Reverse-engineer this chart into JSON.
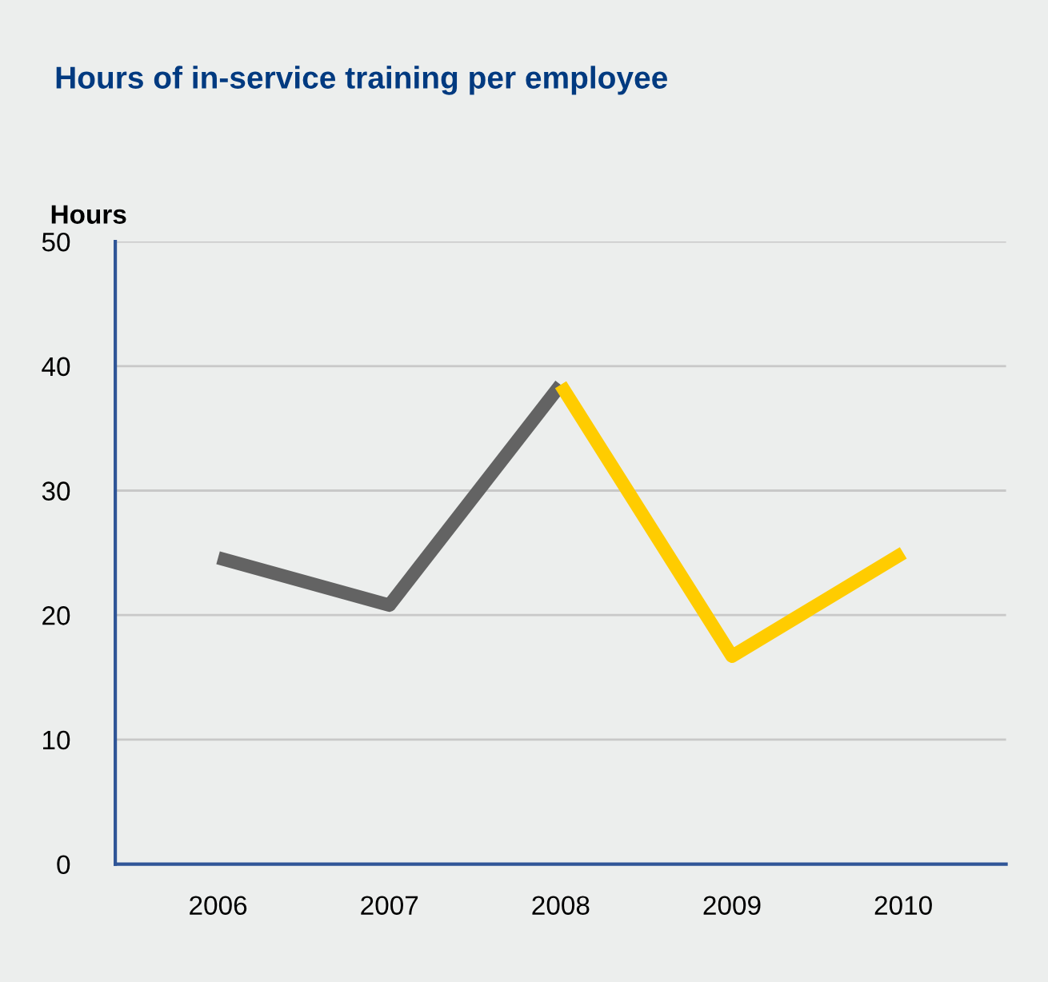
{
  "chart_data": {
    "type": "line",
    "title": "Hours of in-service training per employee",
    "ylabel": "Hours",
    "categories": [
      "2006",
      "2007",
      "2008",
      "2009",
      "2010"
    ],
    "series": [
      {
        "color": "#636363",
        "values": [
          24.6,
          20.8,
          38.5,
          null,
          null
        ]
      },
      {
        "color": "#ffcc00",
        "values": [
          null,
          null,
          38.5,
          16.7,
          25.0
        ]
      }
    ],
    "ylim": [
      0,
      50
    ],
    "yticks": [
      0,
      10,
      20,
      30,
      40,
      50
    ],
    "grid": "y",
    "line_style": "solid"
  }
}
